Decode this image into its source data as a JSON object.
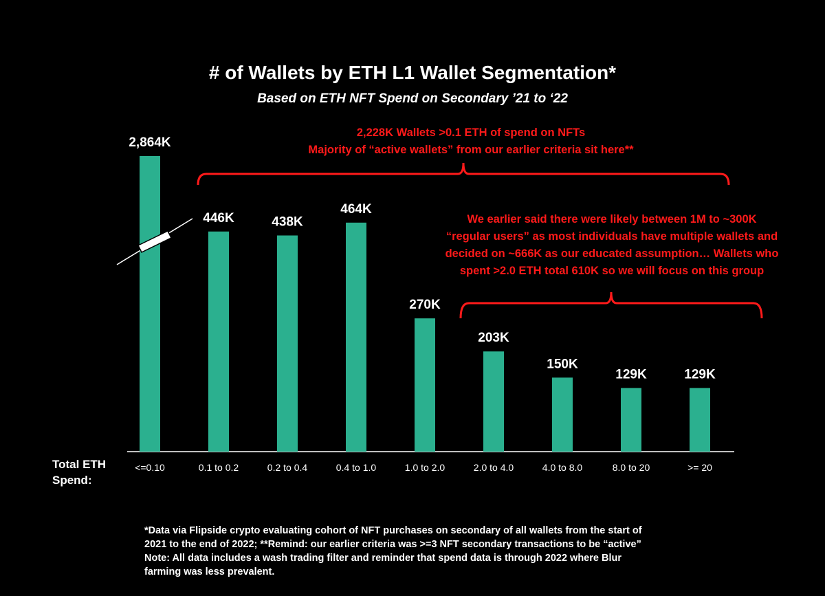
{
  "chart_data": {
    "type": "bar",
    "title": "# of Wallets by ETH L1 Wallet Segmentation*",
    "subtitle": "Based on ETH NFT Spend on Secondary ’21 to ‘22",
    "xlabel": "Total ETH Spend:",
    "ylabel": "",
    "categories": [
      "<=0.10",
      "0.1 to 0.2",
      "0.2 to 0.4",
      "0.4 to 1.0",
      "1.0 to 2.0",
      "2.0 to 4.0",
      "4.0 to 8.0",
      "8.0 to 20",
      ">= 20"
    ],
    "values": [
      2864,
      446,
      438,
      464,
      270,
      203,
      150,
      129,
      129
    ],
    "value_units": "K wallets",
    "data_labels": [
      "2,864K",
      "446K",
      "438K",
      "464K",
      "270K",
      "203K",
      "150K",
      "129K",
      "129K"
    ],
    "broken_axis_category": "<=0.10",
    "grid": false,
    "bar_color": "#2bb08f",
    "annotations": [
      {
        "lines": [
          "2,228K Wallets >0.1 ETH of spend on NFTs",
          "Majority of “active wallets” from our earlier criteria sit here**"
        ],
        "bracket_from": "0.1 to 0.2",
        "bracket_to": ">= 20"
      },
      {
        "lines": [
          "We earlier said there were likely between 1M to ~300K",
          "“regular users” as most individuals have multiple wallets and",
          "decided on ~666K as our educated assumption… Wallets who",
          "spent >2.0 ETH total 610K so we will focus on this group"
        ],
        "bracket_from": "2.0 to 4.0",
        "bracket_to": ">= 20"
      }
    ],
    "annotation_color": "#ff1a1a"
  },
  "footnote": [
    "*Data via Flipside crypto evaluating cohort of NFT purchases on secondary of all wallets from the start of",
    "2021 to the end of 2022; **Remind: our earlier criteria was >=3 NFT secondary transactions to be “active”",
    "Note: All data includes a wash trading filter and reminder that spend data is through 2022 where Blur",
    "farming was less prevalent."
  ]
}
